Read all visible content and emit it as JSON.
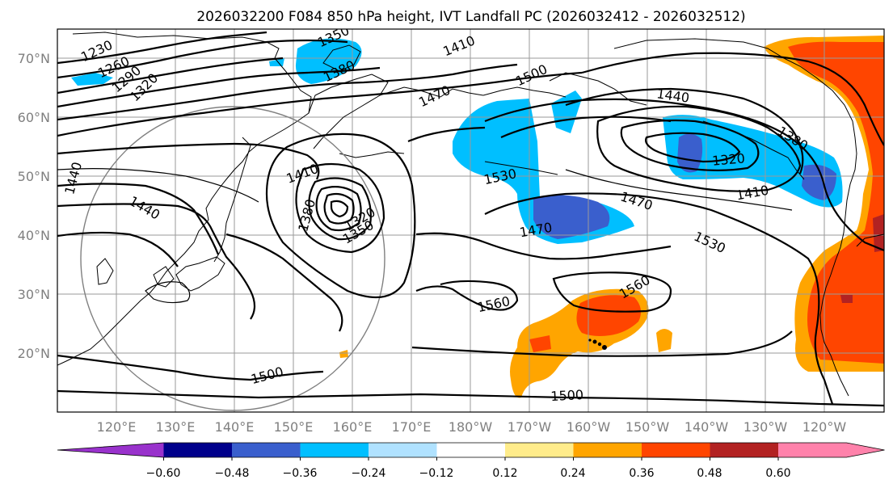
{
  "title": "2026032200 F084 850 hPa height, IVT Landfall PC (2026032412 - 2026032512)",
  "lat_labels": [
    "70°N",
    "60°N",
    "50°N",
    "40°N",
    "30°N",
    "20°N"
  ],
  "lon_labels": [
    "120°E",
    "130°E",
    "140°E",
    "150°E",
    "160°E",
    "170°E",
    "180°W",
    "170°W",
    "160°W",
    "150°W",
    "140°W",
    "130°W",
    "120°W"
  ],
  "contour_labels": [
    "1230",
    "1260",
    "1290",
    "1320",
    "1350",
    "1380",
    "1410",
    "1500",
    "1470",
    "1440",
    "1380",
    "1320",
    "1410",
    "1470",
    "1530",
    "1410",
    "1440",
    "1440",
    "1350",
    "1320",
    "1380",
    "1530",
    "1470",
    "1560",
    "1560",
    "1500",
    "1500"
  ],
  "colorbar": {
    "ticks": [
      "−0.60",
      "−0.48",
      "−0.36",
      "−0.24",
      "−0.12",
      "0.12",
      "0.24",
      "0.36",
      "0.48",
      "0.60"
    ],
    "colors": [
      "#9932cc",
      "#00008b",
      "#3a5fcd",
      "#00bfff",
      "#b0e2ff",
      "#ffffff",
      "#ffec8b",
      "#ffa500",
      "#ff4500",
      "#b22222",
      "#ff82ab"
    ]
  }
}
